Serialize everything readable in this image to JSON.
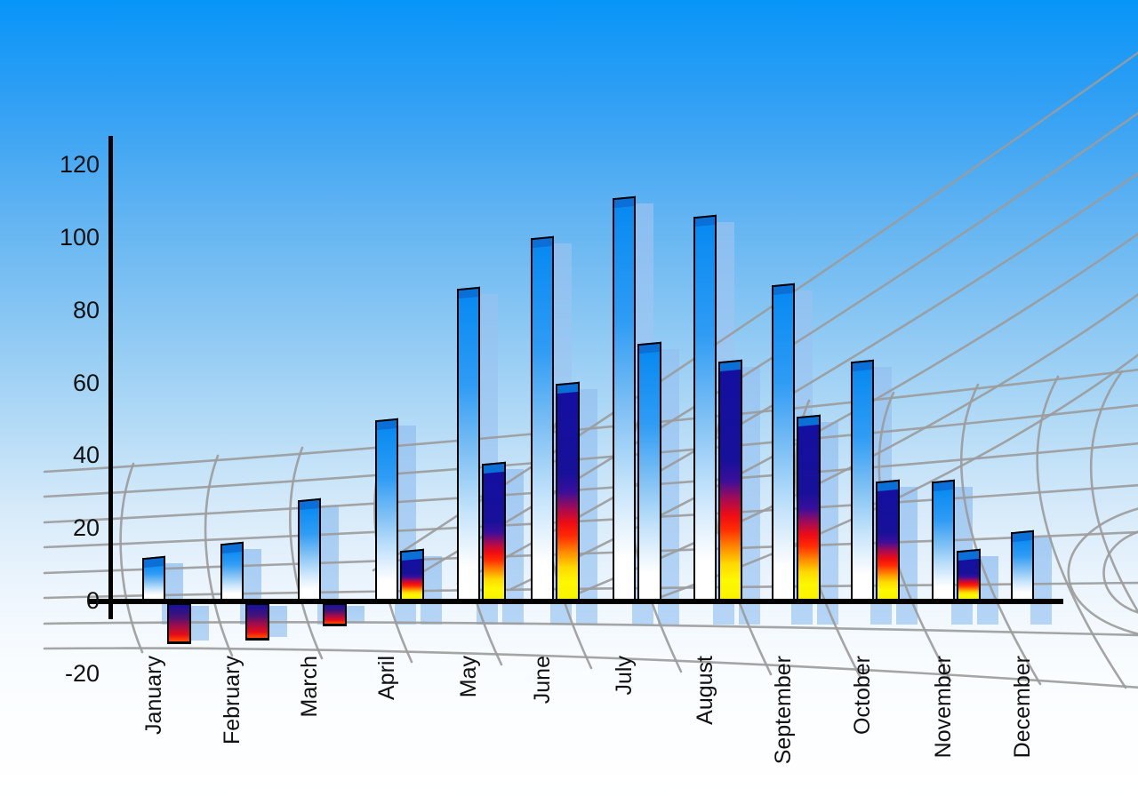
{
  "chart_data": {
    "type": "bar",
    "title": "",
    "categories": [
      "January",
      "February",
      "March",
      "April",
      "May",
      "June",
      "July",
      "August",
      "September",
      "October",
      "November",
      "December"
    ],
    "series": [
      {
        "name": "primary-blue-bars",
        "values": [
          11,
          15,
          27,
          49,
          85,
          99,
          110,
          105,
          86,
          65,
          32,
          18
        ]
      },
      {
        "name": "secondary-rainbow-bars",
        "values": [
          -11,
          -10,
          -6,
          13,
          37,
          59,
          70,
          65,
          50,
          32,
          13,
          null
        ],
        "bar_styles": [
          "rainbow",
          "rainbow",
          "rainbow",
          "rainbow",
          "rainbow",
          "rainbow",
          "blue",
          "rainbow",
          "rainbow",
          "rainbow",
          "rainbow",
          "none"
        ]
      }
    ],
    "xlabel": "",
    "ylabel": "",
    "ylim": [
      -20,
      120
    ],
    "yticks": [
      120,
      100,
      80,
      60,
      40,
      20,
      0,
      -20
    ],
    "legend": "none",
    "grid": "curved 3D perspective floor grid",
    "background": "blue sky gradient fading to white",
    "notes": "each bar has a lighter offset echo bar; July secondary bar is blue-white styled; December has no secondary bar"
  },
  "axis": {
    "ytick_labels": [
      "120",
      "100",
      "80",
      "60",
      "40",
      "20",
      "0",
      "-20"
    ]
  },
  "colors": {
    "sky_top": "#0895F8",
    "sky_bottom": "#FDFEFF",
    "bar_blue_top": "#0689F2",
    "bar_blue_bottom": "#FFFFFF",
    "bar_blue_cap": "#0A6FD6",
    "rainbow_navy": "#16119C",
    "rainbow_red": "#EE0C14",
    "rainbow_yellow": "#FDF800",
    "rainbow_cap": "#0D0B7E",
    "echo_bar": "#A2C8F2",
    "grid_line": "#9B9B9B",
    "axis_line": "#000000",
    "label_text": "#111111"
  }
}
